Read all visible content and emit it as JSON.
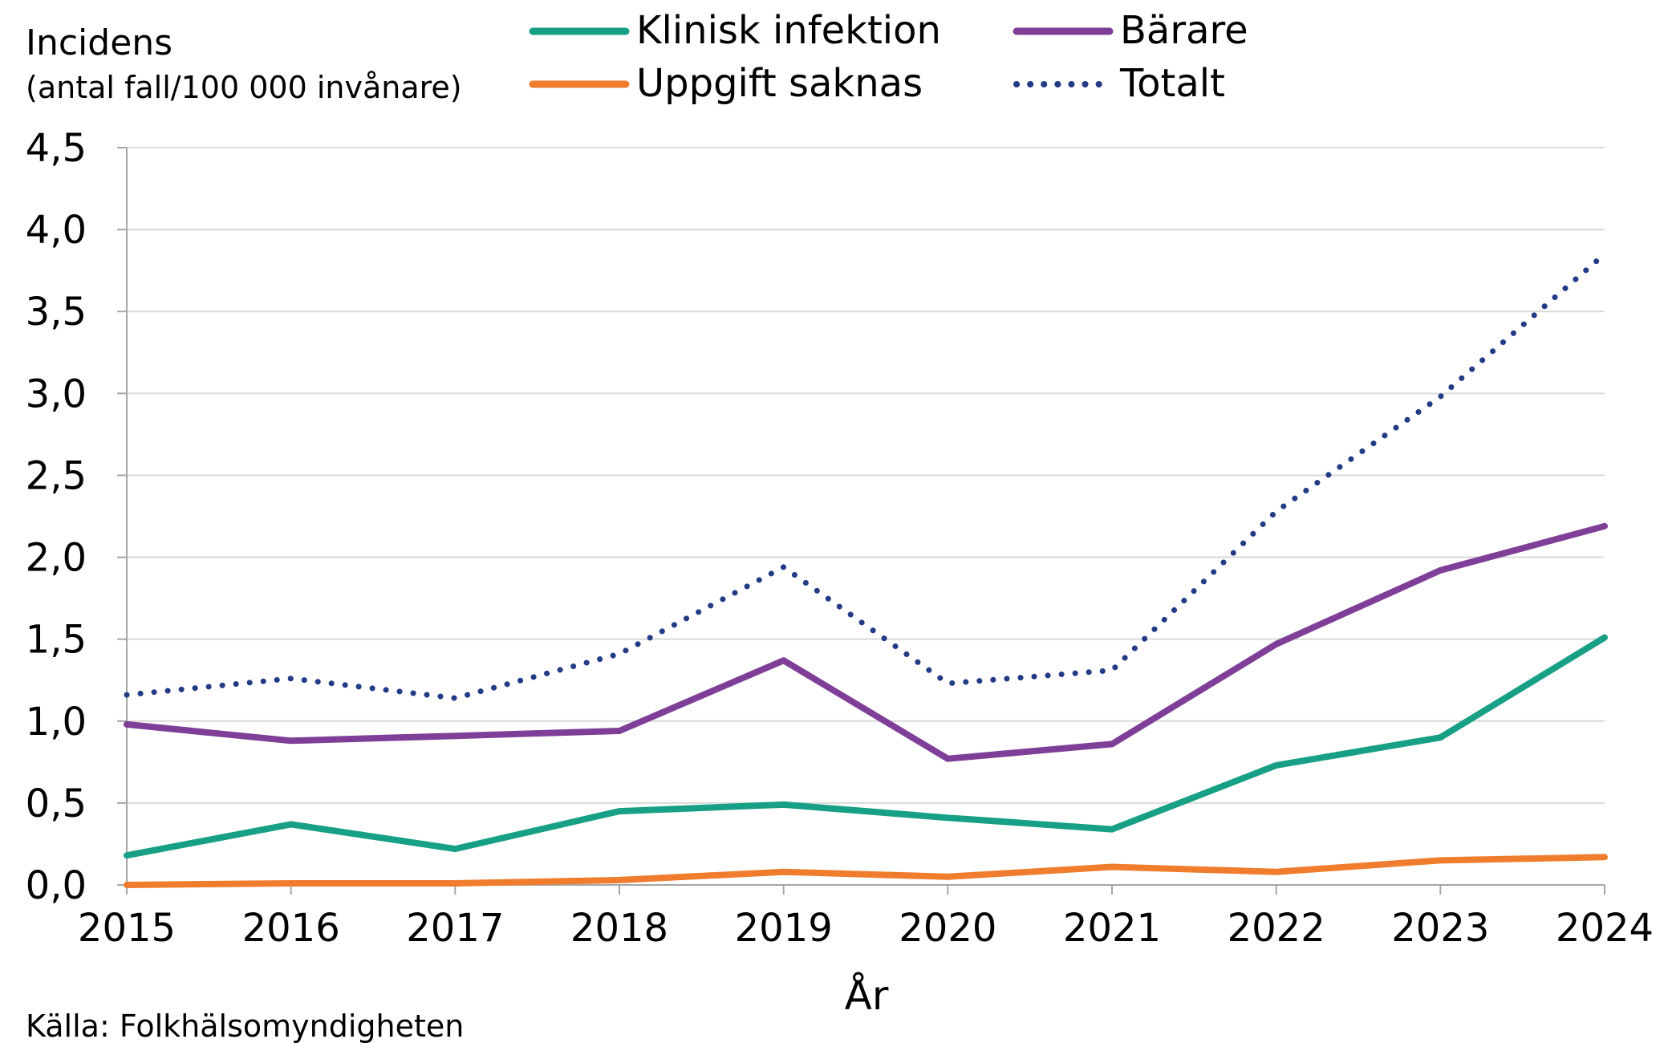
{
  "chart_data": {
    "type": "line",
    "title": "",
    "ylabel_line1": "Incidens",
    "ylabel_line2": "(antal fall/100 000 invånare)",
    "xlabel": "År",
    "source": "Källa: Folkhälsomyndigheten",
    "categories": [
      "2015",
      "2016",
      "2017",
      "2018",
      "2019",
      "2020",
      "2021",
      "2022",
      "2023",
      "2024"
    ],
    "ylim": [
      0,
      4.5
    ],
    "ytick_step": 0.5,
    "ytick_labels": [
      "0,0",
      "0,5",
      "1,0",
      "1,5",
      "2,0",
      "2,5",
      "3,0",
      "3,5",
      "4,0",
      "4,5"
    ],
    "grid": true,
    "legend_position": "top",
    "series": [
      {
        "key": "klinisk",
        "name": "Klinisk infektion",
        "color": "#17a085",
        "style": "solid",
        "values": [
          0.18,
          0.37,
          0.22,
          0.45,
          0.49,
          0.41,
          0.34,
          0.73,
          0.9,
          1.51
        ]
      },
      {
        "key": "barare",
        "name": "Bärare",
        "color": "#7f3f98",
        "style": "solid",
        "values": [
          0.98,
          0.88,
          0.91,
          0.94,
          1.37,
          0.77,
          0.86,
          1.47,
          1.92,
          2.19
        ]
      },
      {
        "key": "uppgift",
        "name": "Uppgift saknas",
        "color": "#f07d2e",
        "style": "solid",
        "values": [
          0.0,
          0.01,
          0.01,
          0.03,
          0.08,
          0.05,
          0.11,
          0.08,
          0.15,
          0.17
        ]
      },
      {
        "key": "totalt",
        "name": "Totalt",
        "color": "#233b86",
        "style": "dotted",
        "values": [
          1.16,
          1.26,
          1.14,
          1.41,
          1.94,
          1.23,
          1.31,
          2.28,
          2.98,
          3.85
        ]
      }
    ]
  }
}
